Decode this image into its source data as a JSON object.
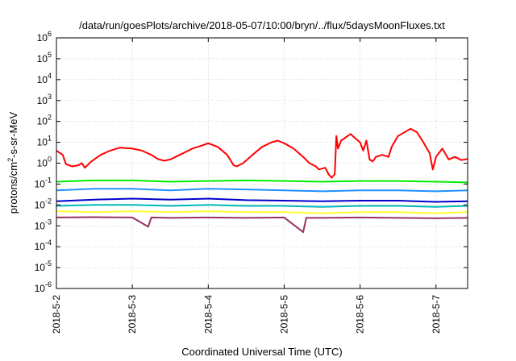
{
  "chart_data": {
    "type": "line",
    "title": "/data/run/goesPlots/archive/2018-05-07/10:00/bryn/../flux/5daysMoonFluxes.txt",
    "xlabel": "Coordinated Universal Time (UTC)",
    "ylabel": "protons/cm²-s-sr-MeV",
    "ylabel_parts": {
      "before": "protons/cm",
      "sup": "2",
      "after": "-s-sr-MeV"
    },
    "yscale": "log",
    "ylim": [
      1e-06,
      1000000.0
    ],
    "xlim": [
      "2018-05-02T00:00",
      "2018-05-07T10:00"
    ],
    "grid": true,
    "x_ticks": [
      "2018-5-2",
      "2018-5-3",
      "2018-5-4",
      "2018-5-5",
      "2018-5-6",
      "2018-5-7"
    ],
    "y_ticks": [
      {
        "base": "10",
        "exp": "-6"
      },
      {
        "base": "10",
        "exp": "-5"
      },
      {
        "base": "10",
        "exp": "-4"
      },
      {
        "base": "10",
        "exp": "-3"
      },
      {
        "base": "10",
        "exp": "-2"
      },
      {
        "base": "10",
        "exp": "-1"
      },
      {
        "base": "10",
        "exp": "0"
      },
      {
        "base": "10",
        "exp": "1"
      },
      {
        "base": "10",
        "exp": "2"
      },
      {
        "base": "10",
        "exp": "3"
      },
      {
        "base": "10",
        "exp": "4"
      },
      {
        "base": "10",
        "exp": "5"
      },
      {
        "base": "10",
        "exp": "6"
      }
    ],
    "series": [
      {
        "color": "#ff0000",
        "points": [
          [
            "2018-05-02T00:00",
            4.0
          ],
          [
            "2018-05-02T02:00",
            2.5
          ],
          [
            "2018-05-02T03:00",
            0.9
          ],
          [
            "2018-05-02T05:00",
            0.7
          ],
          [
            "2018-05-02T07:00",
            0.8
          ],
          [
            "2018-05-02T08:00",
            1.0
          ],
          [
            "2018-05-02T09:00",
            0.6
          ],
          [
            "2018-05-02T11:00",
            1.2
          ],
          [
            "2018-05-02T14:00",
            2.5
          ],
          [
            "2018-05-02T17:00",
            4.0
          ],
          [
            "2018-05-02T20:00",
            5.5
          ],
          [
            "2018-05-03T00:00",
            5.0
          ],
          [
            "2018-05-03T03:00",
            4.0
          ],
          [
            "2018-05-03T06:00",
            2.5
          ],
          [
            "2018-05-03T08:00",
            1.6
          ],
          [
            "2018-05-03T10:00",
            1.3
          ],
          [
            "2018-05-03T12:00",
            1.5
          ],
          [
            "2018-05-03T15:00",
            2.5
          ],
          [
            "2018-05-03T19:00",
            5.0
          ],
          [
            "2018-05-03T22:00",
            7.0
          ],
          [
            "2018-05-04T00:00",
            9.0
          ],
          [
            "2018-05-04T03:00",
            6.0
          ],
          [
            "2018-05-04T06:00",
            2.5
          ],
          [
            "2018-05-04T08:00",
            0.8
          ],
          [
            "2018-05-04T09:00",
            0.7
          ],
          [
            "2018-05-04T11:00",
            1.0
          ],
          [
            "2018-05-04T14:00",
            2.5
          ],
          [
            "2018-05-04T17:00",
            6.0
          ],
          [
            "2018-05-04T20:00",
            10.0
          ],
          [
            "2018-05-04T22:00",
            12.0
          ],
          [
            "2018-05-05T00:00",
            9.0
          ],
          [
            "2018-05-05T03:00",
            5.0
          ],
          [
            "2018-05-05T06:00",
            2.0
          ],
          [
            "2018-05-05T08:00",
            1.0
          ],
          [
            "2018-05-05T10:00",
            0.7
          ],
          [
            "2018-05-05T11:00",
            0.5
          ],
          [
            "2018-05-05T13:00",
            0.6
          ],
          [
            "2018-05-05T14:00",
            0.3
          ],
          [
            "2018-05-05T14:30",
            0.25
          ],
          [
            "2018-05-05T15:00",
            0.2
          ],
          [
            "2018-05-05T16:00",
            0.3
          ],
          [
            "2018-05-05T16:30",
            20.0
          ],
          [
            "2018-05-05T17:00",
            5.0
          ],
          [
            "2018-05-05T18:00",
            12.0
          ],
          [
            "2018-05-05T21:00",
            25.0
          ],
          [
            "2018-05-05T22:00",
            18.0
          ],
          [
            "2018-05-06T00:00",
            10.0
          ],
          [
            "2018-05-06T01:00",
            4.0
          ],
          [
            "2018-05-06T02:00",
            12.0
          ],
          [
            "2018-05-06T03:00",
            1.5
          ],
          [
            "2018-05-06T04:00",
            1.2
          ],
          [
            "2018-05-06T05:00",
            2.0
          ],
          [
            "2018-05-06T07:00",
            2.5
          ],
          [
            "2018-05-06T09:00",
            2.0
          ],
          [
            "2018-05-06T10:00",
            6.0
          ],
          [
            "2018-05-06T12:00",
            20.0
          ],
          [
            "2018-05-06T14:00",
            30.0
          ],
          [
            "2018-05-06T16:00",
            45.0
          ],
          [
            "2018-05-06T18:00",
            30.0
          ],
          [
            "2018-05-06T20:00",
            10.0
          ],
          [
            "2018-05-06T22:00",
            3.0
          ],
          [
            "2018-05-06T23:00",
            0.5
          ],
          [
            "2018-05-07T00:00",
            2.0
          ],
          [
            "2018-05-07T02:00",
            5.0
          ],
          [
            "2018-05-07T04:00",
            1.5
          ],
          [
            "2018-05-07T06:00",
            2.0
          ],
          [
            "2018-05-07T08:00",
            1.4
          ],
          [
            "2018-05-07T10:00",
            1.6
          ]
        ]
      },
      {
        "color": "#00ee00",
        "points": [
          [
            "2018-05-02T00:00",
            0.13
          ],
          [
            "2018-05-02T12:00",
            0.15
          ],
          [
            "2018-05-03T00:00",
            0.15
          ],
          [
            "2018-05-03T12:00",
            0.13
          ],
          [
            "2018-05-04T00:00",
            0.14
          ],
          [
            "2018-05-04T12:00",
            0.15
          ],
          [
            "2018-05-05T00:00",
            0.14
          ],
          [
            "2018-05-05T12:00",
            0.13
          ],
          [
            "2018-05-06T00:00",
            0.14
          ],
          [
            "2018-05-06T12:00",
            0.14
          ],
          [
            "2018-05-07T00:00",
            0.13
          ],
          [
            "2018-05-07T10:00",
            0.12
          ]
        ]
      },
      {
        "color": "#1e90ff",
        "points": [
          [
            "2018-05-02T00:00",
            0.05
          ],
          [
            "2018-05-02T12:00",
            0.06
          ],
          [
            "2018-05-03T00:00",
            0.06
          ],
          [
            "2018-05-03T12:00",
            0.05
          ],
          [
            "2018-05-04T00:00",
            0.06
          ],
          [
            "2018-05-04T12:00",
            0.055
          ],
          [
            "2018-05-05T00:00",
            0.05
          ],
          [
            "2018-05-05T12:00",
            0.045
          ],
          [
            "2018-05-06T00:00",
            0.05
          ],
          [
            "2018-05-06T12:00",
            0.05
          ],
          [
            "2018-05-07T00:00",
            0.045
          ],
          [
            "2018-05-07T10:00",
            0.05
          ]
        ]
      },
      {
        "color": "#0000cc",
        "points": [
          [
            "2018-05-02T00:00",
            0.015
          ],
          [
            "2018-05-02T12:00",
            0.018
          ],
          [
            "2018-05-03T00:00",
            0.02
          ],
          [
            "2018-05-03T12:00",
            0.018
          ],
          [
            "2018-05-04T00:00",
            0.02
          ],
          [
            "2018-05-04T12:00",
            0.017
          ],
          [
            "2018-05-05T00:00",
            0.016
          ],
          [
            "2018-05-05T12:00",
            0.015
          ],
          [
            "2018-05-06T00:00",
            0.016
          ],
          [
            "2018-05-06T12:00",
            0.016
          ],
          [
            "2018-05-07T00:00",
            0.014
          ],
          [
            "2018-05-07T10:00",
            0.015
          ]
        ]
      },
      {
        "color": "#00b8b8",
        "points": [
          [
            "2018-05-02T00:00",
            0.009
          ],
          [
            "2018-05-02T12:00",
            0.01
          ],
          [
            "2018-05-03T00:00",
            0.01
          ],
          [
            "2018-05-03T12:00",
            0.009
          ],
          [
            "2018-05-04T00:00",
            0.01
          ],
          [
            "2018-05-04T12:00",
            0.009
          ],
          [
            "2018-05-05T00:00",
            0.009
          ],
          [
            "2018-05-05T12:00",
            0.008
          ],
          [
            "2018-05-06T00:00",
            0.009
          ],
          [
            "2018-05-06T12:00",
            0.009
          ],
          [
            "2018-05-07T00:00",
            0.008
          ],
          [
            "2018-05-07T10:00",
            0.009
          ]
        ]
      },
      {
        "color": "#ffff33",
        "points": [
          [
            "2018-05-02T00:00",
            0.005
          ],
          [
            "2018-05-02T12:00",
            0.0045
          ],
          [
            "2018-05-03T00:00",
            0.005
          ],
          [
            "2018-05-03T12:00",
            0.0045
          ],
          [
            "2018-05-04T00:00",
            0.005
          ],
          [
            "2018-05-04T12:00",
            0.0045
          ],
          [
            "2018-05-05T00:00",
            0.0045
          ],
          [
            "2018-05-05T12:00",
            0.004
          ],
          [
            "2018-05-06T00:00",
            0.0045
          ],
          [
            "2018-05-06T12:00",
            0.0045
          ],
          [
            "2018-05-07T00:00",
            0.004
          ],
          [
            "2018-05-07T10:00",
            0.0045
          ]
        ]
      },
      {
        "color": "#993366",
        "points": [
          [
            "2018-05-02T00:00",
            0.0025
          ],
          [
            "2018-05-02T12:00",
            0.0026
          ],
          [
            "2018-05-03T00:00",
            0.0025
          ],
          [
            "2018-05-03T05:00",
            0.0009
          ],
          [
            "2018-05-03T06:00",
            0.0025
          ],
          [
            "2018-05-03T12:00",
            0.0024
          ],
          [
            "2018-05-04T00:00",
            0.0025
          ],
          [
            "2018-05-04T12:00",
            0.0024
          ],
          [
            "2018-05-05T00:00",
            0.0025
          ],
          [
            "2018-05-05T06:00",
            0.0005
          ],
          [
            "2018-05-05T07:00",
            0.0024
          ],
          [
            "2018-05-05T12:00",
            0.0024
          ],
          [
            "2018-05-06T00:00",
            0.0025
          ],
          [
            "2018-05-06T12:00",
            0.0024
          ],
          [
            "2018-05-07T00:00",
            0.0023
          ],
          [
            "2018-05-07T10:00",
            0.0024
          ]
        ]
      }
    ]
  }
}
